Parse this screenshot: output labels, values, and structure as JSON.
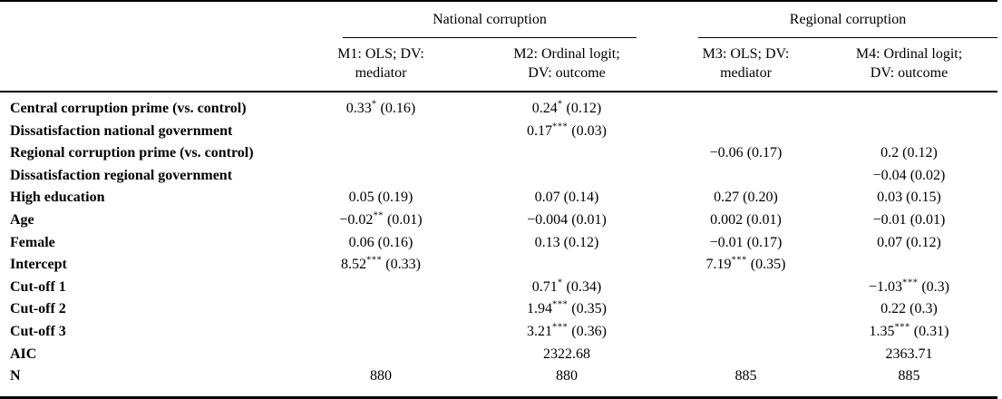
{
  "colors": {
    "text": "#000000",
    "background": "#ffffff",
    "rule": "#000000"
  },
  "table": {
    "groups": [
      {
        "label": "National corruption"
      },
      {
        "label": "Regional corruption"
      }
    ],
    "columns": [
      {
        "line1": "M1: OLS; DV:",
        "line2": "mediator"
      },
      {
        "line1": "M2: Ordinal logit;",
        "line2": "DV: outcome"
      },
      {
        "line1": "M3: OLS; DV:",
        "line2": "mediator"
      },
      {
        "line1": "M4: Ordinal logit;",
        "line2": "DV: outcome"
      }
    ],
    "rows": [
      {
        "label": "Central corruption prime (vs. control)",
        "cells": [
          {
            "coef": "0.33",
            "stars": "*",
            "se": "(0.16)"
          },
          {
            "coef": "0.24",
            "stars": "*",
            "se": "(0.12)"
          },
          null,
          null
        ]
      },
      {
        "label": "Dissatisfaction national government",
        "cells": [
          null,
          {
            "coef": "0.17",
            "stars": "***",
            "se": "(0.03)"
          },
          null,
          null
        ]
      },
      {
        "label": "Regional corruption prime (vs. control)",
        "cells": [
          null,
          null,
          {
            "coef": "−0.06",
            "stars": "",
            "se": "(0.17)"
          },
          {
            "coef": "0.2",
            "stars": "",
            "se": "(0.12)"
          }
        ]
      },
      {
        "label": "Dissatisfaction regional government",
        "cells": [
          null,
          null,
          null,
          {
            "coef": "−0.04",
            "stars": "",
            "se": "(0.02)"
          }
        ]
      },
      {
        "label": "High education",
        "cells": [
          {
            "coef": "0.05",
            "stars": "",
            "se": "(0.19)"
          },
          {
            "coef": "0.07",
            "stars": "",
            "se": "(0.14)"
          },
          {
            "coef": "0.27",
            "stars": "",
            "se": "(0.20)"
          },
          {
            "coef": "0.03",
            "stars": "",
            "se": "(0.15)"
          }
        ]
      },
      {
        "label": "Age",
        "cells": [
          {
            "coef": "−0.02",
            "stars": "**",
            "se": "(0.01)"
          },
          {
            "coef": "−0.004",
            "stars": "",
            "se": "(0.01)"
          },
          {
            "coef": "0.002",
            "stars": "",
            "se": "(0.01)"
          },
          {
            "coef": "−0.01",
            "stars": "",
            "se": "(0.01)"
          }
        ]
      },
      {
        "label": "Female",
        "cells": [
          {
            "coef": "0.06",
            "stars": "",
            "se": "(0.16)"
          },
          {
            "coef": "0.13",
            "stars": "",
            "se": "(0.12)"
          },
          {
            "coef": "−0.01",
            "stars": "",
            "se": "(0.17)"
          },
          {
            "coef": "0.07",
            "stars": "",
            "se": "(0.12)"
          }
        ]
      },
      {
        "label": "Intercept",
        "cells": [
          {
            "coef": "8.52",
            "stars": "***",
            "se": "(0.33)"
          },
          null,
          {
            "coef": "7.19",
            "stars": "***",
            "se": "(0.35)"
          },
          null
        ]
      },
      {
        "label": "Cut-off 1",
        "cells": [
          null,
          {
            "coef": "0.71",
            "stars": "*",
            "se": "(0.34)"
          },
          null,
          {
            "coef": "−1.03",
            "stars": "***",
            "se": "(0.3)"
          }
        ]
      },
      {
        "label": "Cut-off 2",
        "cells": [
          null,
          {
            "coef": "1.94",
            "stars": "***",
            "se": "(0.35)"
          },
          null,
          {
            "coef": "0.22",
            "stars": "",
            "se": "(0.3)"
          }
        ]
      },
      {
        "label": "Cut-off 3",
        "cells": [
          null,
          {
            "coef": "3.21",
            "stars": "***",
            "se": "(0.36)"
          },
          null,
          {
            "coef": "1.35",
            "stars": "***",
            "se": "(0.31)"
          }
        ]
      },
      {
        "label": "AIC",
        "cells": [
          null,
          {
            "coef": "2322.68",
            "stars": "",
            "se": ""
          },
          null,
          {
            "coef": "2363.71",
            "stars": "",
            "se": ""
          }
        ]
      },
      {
        "label": "N",
        "cells": [
          {
            "coef": "880",
            "stars": "",
            "se": ""
          },
          {
            "coef": "880",
            "stars": "",
            "se": ""
          },
          {
            "coef": "885",
            "stars": "",
            "se": ""
          },
          {
            "coef": "885",
            "stars": "",
            "se": ""
          }
        ]
      }
    ]
  }
}
